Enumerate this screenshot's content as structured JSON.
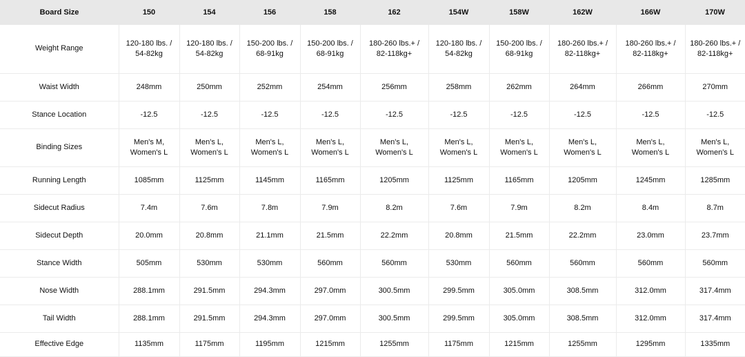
{
  "table": {
    "header_label": "Board Size",
    "columns": [
      "150",
      "154",
      "156",
      "158",
      "162",
      "154W",
      "158W",
      "162W",
      "166W",
      "170W"
    ],
    "rows": [
      {
        "label": "Weight Range",
        "values": [
          "120-180 lbs. / 54-82kg",
          "120-180 lbs. / 54-82kg",
          "150-200 lbs. / 68-91kg",
          "150-200 lbs. / 68-91kg",
          "180-260 lbs.+ / 82-118kg+",
          "120-180 lbs. / 54-82kg",
          "150-200 lbs. / 68-91kg",
          "180-260 lbs.+ / 82-118kg+",
          "180-260 lbs.+ / 82-118kg+",
          "180-260 lbs.+ / 82-118kg+"
        ]
      },
      {
        "label": "Waist Width",
        "values": [
          "248mm",
          "250mm",
          "252mm",
          "254mm",
          "256mm",
          "258mm",
          "262mm",
          "264mm",
          "266mm",
          "270mm"
        ]
      },
      {
        "label": "Stance Location",
        "values": [
          "-12.5",
          "-12.5",
          "-12.5",
          "-12.5",
          "-12.5",
          "-12.5",
          "-12.5",
          "-12.5",
          "-12.5",
          "-12.5"
        ]
      },
      {
        "label": "Binding Sizes",
        "values": [
          "Men's M, Women's L",
          "Men's L, Women's L",
          "Men's L, Women's L",
          "Men's L, Women's L",
          "Men's L, Women's L",
          "Men's L, Women's L",
          "Men's L, Women's L",
          "Men's L, Women's L",
          "Men's L, Women's L",
          "Men's L, Women's L"
        ]
      },
      {
        "label": "Running Length",
        "values": [
          "1085mm",
          "1125mm",
          "1145mm",
          "1165mm",
          "1205mm",
          "1125mm",
          "1165mm",
          "1205mm",
          "1245mm",
          "1285mm"
        ]
      },
      {
        "label": "Sidecut Radius",
        "values": [
          "7.4m",
          "7.6m",
          "7.8m",
          "7.9m",
          "8.2m",
          "7.6m",
          "7.9m",
          "8.2m",
          "8.4m",
          "8.7m"
        ]
      },
      {
        "label": "Sidecut Depth",
        "values": [
          "20.0mm",
          "20.8mm",
          "21.1mm",
          "21.5mm",
          "22.2mm",
          "20.8mm",
          "21.5mm",
          "22.2mm",
          "23.0mm",
          "23.7mm"
        ]
      },
      {
        "label": "Stance Width",
        "values": [
          "505mm",
          "530mm",
          "530mm",
          "560mm",
          "560mm",
          "530mm",
          "560mm",
          "560mm",
          "560mm",
          "560mm"
        ]
      },
      {
        "label": "Nose Width",
        "values": [
          "288.1mm",
          "291.5mm",
          "294.3mm",
          "297.0mm",
          "300.5mm",
          "299.5mm",
          "305.0mm",
          "308.5mm",
          "312.0mm",
          "317.4mm"
        ]
      },
      {
        "label": "Tail Width",
        "values": [
          "288.1mm",
          "291.5mm",
          "294.3mm",
          "297.0mm",
          "300.5mm",
          "299.5mm",
          "305.0mm",
          "308.5mm",
          "312.0mm",
          "317.4mm"
        ]
      },
      {
        "label": "Effective Edge",
        "values": [
          "1135mm",
          "1175mm",
          "1195mm",
          "1215mm",
          "1255mm",
          "1175mm",
          "1215mm",
          "1255mm",
          "1295mm",
          "1335mm"
        ]
      }
    ]
  }
}
